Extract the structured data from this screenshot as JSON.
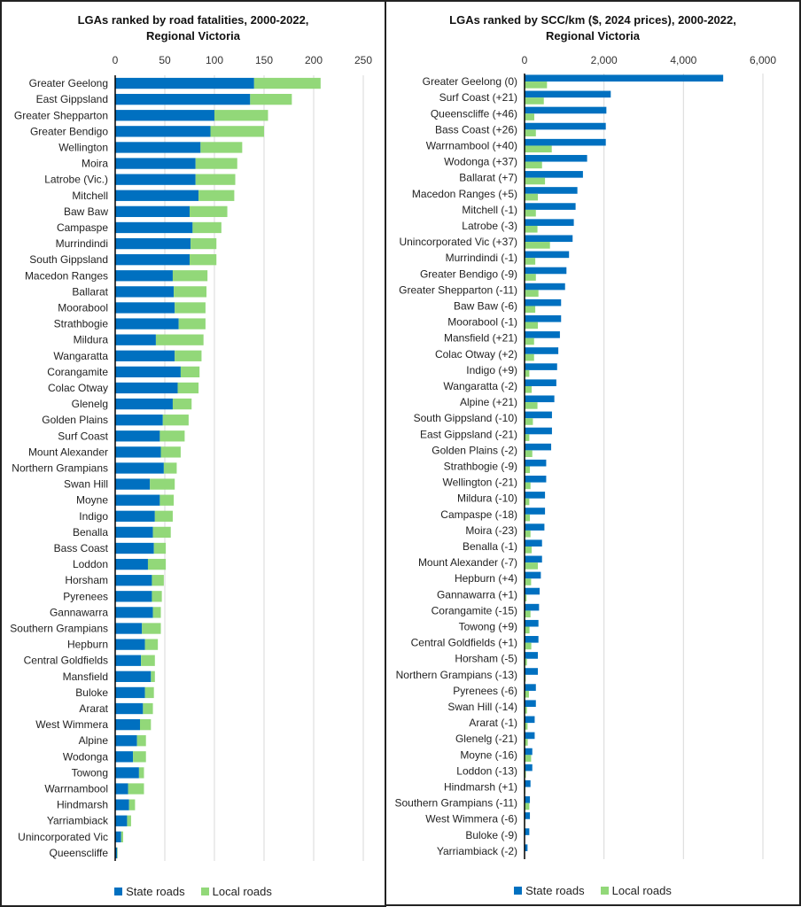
{
  "colors": {
    "state": "#0070C0",
    "local": "#92D879",
    "grid": "#d9d9d9",
    "axis": "#000000"
  },
  "chart_data": [
    {
      "type": "bar",
      "orientation": "horizontal",
      "stacked": true,
      "title_lines": [
        "LGAs ranked by road fatalities, 2000-2022,",
        "Regional Victoria"
      ],
      "xlim": [
        0,
        250
      ],
      "xticks": [
        0,
        50,
        100,
        150,
        200,
        250
      ],
      "xtick_labels": [
        "0",
        "50",
        "100",
        "150",
        "200",
        "250"
      ],
      "grid": true,
      "legend_position": "bottom",
      "categories": [
        "Greater Geelong",
        "East Gippsland",
        "Greater Shepparton",
        "Greater Bendigo",
        "Wellington",
        "Moira",
        "Latrobe (Vic.)",
        "Mitchell",
        "Baw Baw",
        "Campaspe",
        "Murrindindi",
        "South Gippsland",
        "Macedon Ranges",
        "Ballarat",
        "Moorabool",
        "Strathbogie",
        "Mildura",
        "Wangaratta",
        "Corangamite",
        "Colac Otway",
        "Glenelg",
        "Golden Plains",
        "Surf Coast",
        "Mount Alexander",
        "Northern Grampians",
        "Swan Hill",
        "Moyne",
        "Indigo",
        "Benalla",
        "Bass Coast",
        "Loddon",
        "Horsham",
        "Pyrenees",
        "Gannawarra",
        "Southern Grampians",
        "Hepburn",
        "Central Goldfields",
        "Mansfield",
        "Buloke",
        "Ararat",
        "West Wimmera",
        "Alpine",
        "Wodonga",
        "Towong",
        "Warrnambool",
        "Hindmarsh",
        "Yarriambiack",
        "Unincorporated Vic",
        "Queenscliffe"
      ],
      "series": [
        {
          "name": "State roads",
          "values": [
            140,
            136,
            100,
            96,
            86,
            81,
            81,
            84,
            75,
            78,
            76,
            75,
            58,
            59,
            60,
            64,
            41,
            60,
            66,
            63,
            58,
            48,
            45,
            46,
            49,
            35,
            45,
            40,
            38,
            39,
            33,
            37,
            37,
            38,
            27,
            30,
            26,
            36,
            30,
            28,
            25,
            22,
            18,
            24,
            13,
            14,
            12,
            6,
            2
          ]
        },
        {
          "name": "Local roads",
          "values": [
            67,
            42,
            54,
            54,
            42,
            42,
            40,
            36,
            38,
            29,
            26,
            27,
            35,
            33,
            31,
            27,
            48,
            27,
            19,
            21,
            19,
            26,
            25,
            20,
            13,
            25,
            14,
            18,
            18,
            12,
            18,
            12,
            10,
            8,
            19,
            13,
            14,
            4,
            9,
            10,
            11,
            9,
            13,
            5,
            16,
            6,
            4,
            2,
            0.5
          ]
        }
      ]
    },
    {
      "type": "bar",
      "orientation": "horizontal",
      "stacked": false,
      "title_lines": [
        "LGAs ranked by SCC/km ($, 2024 prices), 2000-2022,",
        "Regional Victoria"
      ],
      "xlim": [
        0,
        6000
      ],
      "xticks": [
        0,
        2000,
        4000,
        6000
      ],
      "xtick_labels": [
        "0",
        "2,000",
        "4,000",
        "6,000"
      ],
      "grid": true,
      "legend_position": "bottom",
      "categories": [
        "Greater Geelong (0)",
        "Surf Coast (+21)",
        "Queenscliffe (+46)",
        "Bass Coast (+26)",
        "Warrnambool (+40)",
        "Wodonga (+37)",
        "Ballarat (+7)",
        "Macedon Ranges (+5)",
        "Mitchell (-1)",
        "Latrobe (-3)",
        "Unincorporated Vic (+37)",
        "Murrindindi (-1)",
        "Greater Bendigo (-9)",
        "Greater Shepparton (-11)",
        "Baw Baw (-6)",
        "Moorabool (-1)",
        "Mansfield (+21)",
        "Colac Otway (+2)",
        "Indigo (+9)",
        "Wangaratta (-2)",
        "Alpine (+21)",
        "South Gippsland (-10)",
        "East Gippsland (-21)",
        "Golden Plains (-2)",
        "Strathbogie (-9)",
        "Wellington (-21)",
        "Mildura (-10)",
        "Campaspe (-18)",
        "Moira (-23)",
        "Benalla (-1)",
        "Mount Alexander (-7)",
        "Hepburn (+4)",
        "Gannawarra (+1)",
        "Corangamite (-15)",
        "Towong (+9)",
        "Central Goldfields (+1)",
        "Horsham (-5)",
        "Northern Grampians (-13)",
        "Pyrenees (-6)",
        "Swan Hill (-14)",
        "Ararat (-1)",
        "Glenelg (-21)",
        "Moyne (-16)",
        "Loddon (-13)",
        "Hindmarsh (+1)",
        "Southern Grampians (-11)",
        "West Wimmera (-6)",
        "Buloke (-9)",
        "Yarriambiack (-2)"
      ],
      "series": [
        {
          "name": "State roads",
          "values": [
            5000,
            2170,
            2060,
            2045,
            2045,
            1575,
            1470,
            1330,
            1285,
            1240,
            1210,
            1120,
            1055,
            1020,
            920,
            920,
            890,
            850,
            820,
            800,
            750,
            690,
            690,
            670,
            545,
            545,
            515,
            515,
            500,
            440,
            440,
            410,
            380,
            365,
            350,
            350,
            335,
            335,
            285,
            285,
            255,
            255,
            195,
            195,
            150,
            135,
            135,
            120,
            75
          ]
        },
        {
          "name": "Local roads",
          "values": [
            565,
            485,
            245,
            285,
            685,
            440,
            515,
            335,
            285,
            325,
            640,
            270,
            285,
            350,
            270,
            335,
            240,
            240,
            120,
            180,
            325,
            210,
            120,
            195,
            135,
            150,
            120,
            135,
            150,
            180,
            335,
            165,
            50,
            150,
            125,
            170,
            60,
            30,
            110,
            60,
            75,
            80,
            165,
            35,
            20,
            120,
            15,
            7,
            7
          ]
        }
      ]
    }
  ]
}
